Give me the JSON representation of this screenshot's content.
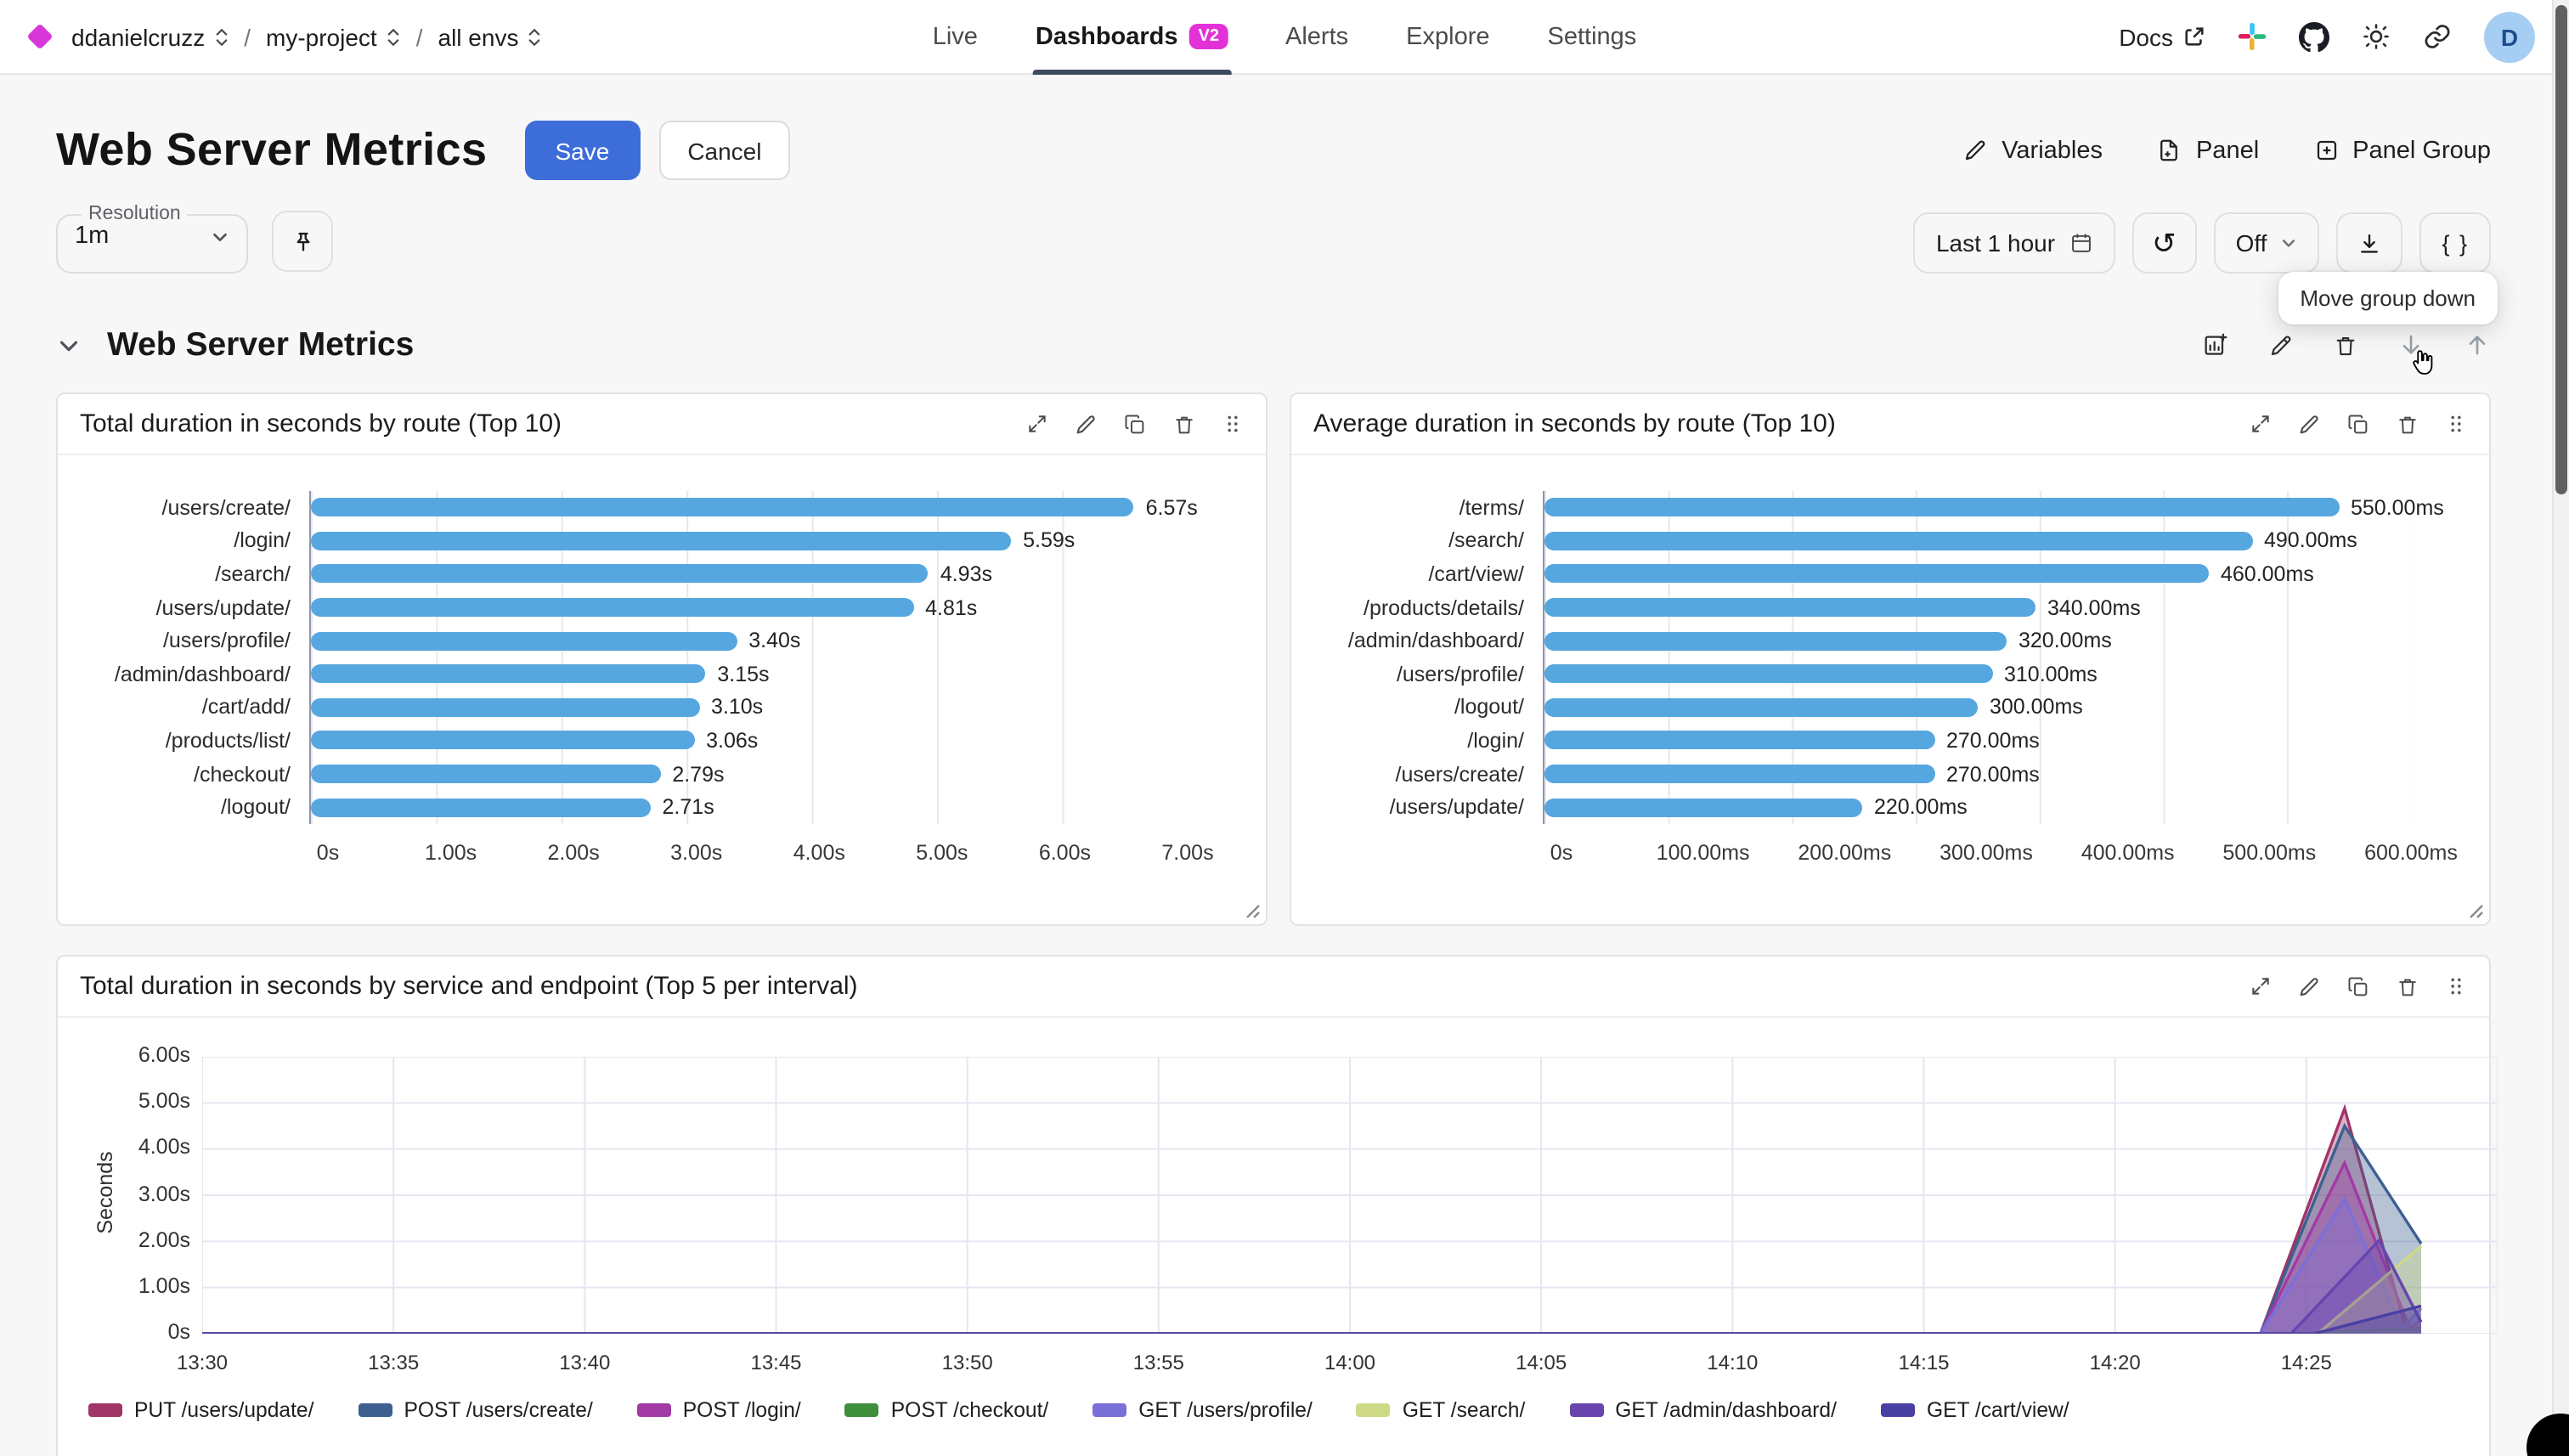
{
  "nav": {
    "breadcrumb": [
      {
        "label": "ddanielcruzz"
      },
      {
        "label": "my-project"
      },
      {
        "label": "all envs"
      }
    ],
    "tabs": [
      {
        "label": "Live",
        "active": false
      },
      {
        "label": "Dashboards",
        "active": true,
        "badge": "V2"
      },
      {
        "label": "Alerts",
        "active": false
      },
      {
        "label": "Explore",
        "active": false
      },
      {
        "label": "Settings",
        "active": false
      }
    ],
    "docs_label": "Docs",
    "avatar_initial": "D"
  },
  "header": {
    "title": "Web Server Metrics",
    "save_label": "Save",
    "cancel_label": "Cancel",
    "variables_label": "Variables",
    "panel_label": "Panel",
    "panel_group_label": "Panel Group"
  },
  "toolbar": {
    "resolution_label": "Resolution",
    "resolution_value": "1m",
    "time_range_label": "Last 1 hour",
    "refresh_interval_label": "Off",
    "code_button_label": "{ }",
    "tooltip": "Move group down"
  },
  "group": {
    "title": "Web Server Metrics"
  },
  "chart_data": [
    {
      "type": "bar",
      "orientation": "horizontal",
      "title": "Total duration in seconds by route (Top 10)",
      "categories": [
        "/users/create/",
        "/login/",
        "/search/",
        "/users/update/",
        "/users/profile/",
        "/admin/dashboard/",
        "/cart/add/",
        "/products/list/",
        "/checkout/",
        "/logout/"
      ],
      "values": [
        6.57,
        5.59,
        4.93,
        4.81,
        3.4,
        3.15,
        3.1,
        3.06,
        2.79,
        2.71
      ],
      "value_labels": [
        "6.57s",
        "5.59s",
        "4.93s",
        "4.81s",
        "3.40s",
        "3.15s",
        "3.10s",
        "3.06s",
        "2.79s",
        "2.71s"
      ],
      "x_ticks": [
        "0s",
        "1.00s",
        "2.00s",
        "3.00s",
        "4.00s",
        "5.00s",
        "6.00s",
        "7.00s"
      ],
      "xlim": [
        0,
        7
      ],
      "bar_color": "#56a7e0",
      "grid": true
    },
    {
      "type": "bar",
      "orientation": "horizontal",
      "title": "Average duration in seconds by route (Top 10)",
      "categories": [
        "/terms/",
        "/search/",
        "/cart/view/",
        "/products/details/",
        "/admin/dashboard/",
        "/users/profile/",
        "/logout/",
        "/login/",
        "/users/create/",
        "/users/update/"
      ],
      "values": [
        550,
        490,
        460,
        340,
        320,
        310,
        300,
        270,
        270,
        220
      ],
      "value_labels": [
        "550.00ms",
        "490.00ms",
        "460.00ms",
        "340.00ms",
        "320.00ms",
        "310.00ms",
        "300.00ms",
        "270.00ms",
        "270.00ms",
        "220.00ms"
      ],
      "x_ticks": [
        "0s",
        "100.00ms",
        "200.00ms",
        "300.00ms",
        "400.00ms",
        "500.00ms",
        "600.00ms"
      ],
      "xlim": [
        0,
        600
      ],
      "bar_color": "#56a7e0",
      "grid": true
    },
    {
      "type": "area",
      "title": "Total duration in seconds by service and endpoint (Top 5 per interval)",
      "ylabel": "Seconds",
      "ylim": [
        0,
        6
      ],
      "y_ticks": [
        "6.00s",
        "5.00s",
        "4.00s",
        "3.00s",
        "2.00s",
        "1.00s",
        "0s"
      ],
      "x_ticks": [
        "13:30",
        "13:35",
        "13:40",
        "13:45",
        "13:50",
        "13:55",
        "14:00",
        "14:05",
        "14:10",
        "14:15",
        "14:20",
        "14:25"
      ],
      "x_domain_minutes": [
        0,
        60
      ],
      "grid": true,
      "legend_position": "bottom",
      "series": [
        {
          "name": "PUT /users/update/",
          "color": "#A03568",
          "points": [
            [
              0,
              0
            ],
            [
              53.8,
              0
            ],
            [
              56,
              4.88
            ],
            [
              57.6,
              0.1
            ],
            [
              58,
              0.1
            ]
          ]
        },
        {
          "name": "POST /users/create/",
          "color": "#3E6091",
          "points": [
            [
              0,
              0
            ],
            [
              53.8,
              0
            ],
            [
              56,
              4.5
            ],
            [
              58,
              1.95
            ]
          ]
        },
        {
          "name": "POST /login/",
          "color": "#A23AA6",
          "points": [
            [
              0,
              0
            ],
            [
              53.8,
              0
            ],
            [
              56,
              3.7
            ],
            [
              57.7,
              0.12
            ],
            [
              58,
              0.3
            ]
          ]
        },
        {
          "name": "POST /checkout/",
          "color": "#3F8E3C",
          "points": [
            [
              0,
              0
            ],
            [
              55,
              0
            ],
            [
              58,
              0.12
            ]
          ]
        },
        {
          "name": "GET /users/profile/",
          "color": "#7B6FD8",
          "points": [
            [
              0,
              0
            ],
            [
              53.8,
              0
            ],
            [
              56,
              2.92
            ],
            [
              57.5,
              0.1
            ],
            [
              58,
              0.55
            ]
          ]
        },
        {
          "name": "GET /search/",
          "color": "#CED985",
          "points": [
            [
              0,
              0
            ],
            [
              55.3,
              0
            ],
            [
              58,
              1.9
            ]
          ]
        },
        {
          "name": "GET /admin/dashboard/",
          "color": "#6845AE",
          "points": [
            [
              0,
              0
            ],
            [
              54.6,
              0
            ],
            [
              56.9,
              2.02
            ],
            [
              58,
              0.25
            ]
          ]
        },
        {
          "name": "GET /cart/view/",
          "color": "#4A3FA3",
          "points": [
            [
              0,
              0
            ],
            [
              55.2,
              0
            ],
            [
              58,
              0.6
            ]
          ]
        }
      ]
    }
  ]
}
